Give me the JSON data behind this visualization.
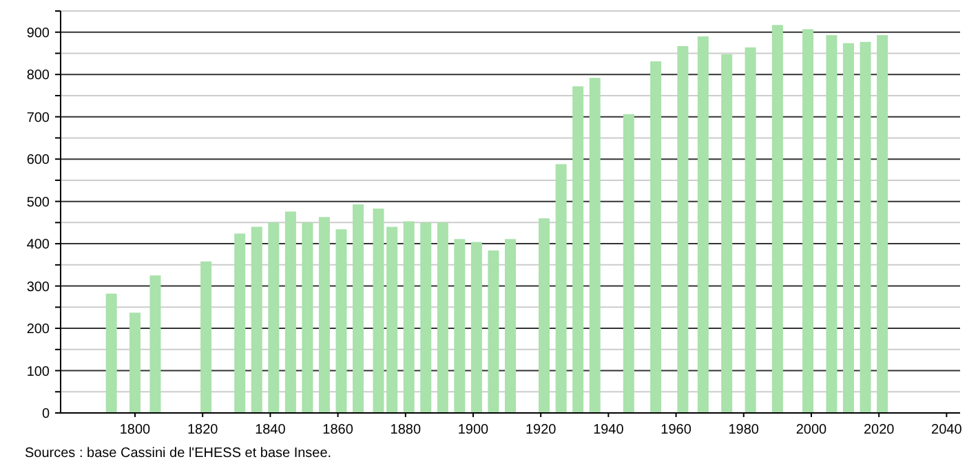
{
  "chart_data": {
    "type": "bar",
    "x": [
      1793,
      1800,
      1806,
      1821,
      1831,
      1836,
      1841,
      1846,
      1851,
      1856,
      1861,
      1866,
      1872,
      1876,
      1881,
      1886,
      1891,
      1896,
      1901,
      1906,
      1911,
      1921,
      1926,
      1931,
      1936,
      1946,
      1954,
      1962,
      1968,
      1975,
      1982,
      1990,
      1999,
      2006,
      2011,
      2016,
      2021
    ],
    "values": [
      282,
      237,
      325,
      358,
      424,
      440,
      450,
      476,
      450,
      463,
      434,
      493,
      483,
      440,
      453,
      450,
      450,
      411,
      404,
      384,
      411,
      460,
      588,
      772,
      792,
      706,
      831,
      867,
      890,
      848,
      864,
      917,
      907,
      893,
      874,
      877,
      893
    ],
    "color": "#a9e2ab",
    "xlim": [
      1778,
      2044
    ],
    "xticks": [
      1800,
      1820,
      1840,
      1860,
      1880,
      1900,
      1920,
      1940,
      1960,
      1980,
      2000,
      2020,
      2040
    ],
    "ylim": [
      0,
      950
    ],
    "yticks": [
      0,
      {
        "value": 50,
        "label": null
      },
      100,
      {
        "value": 150,
        "label": null
      },
      200,
      {
        "value": 250,
        "label": null
      },
      300,
      {
        "value": 350,
        "label": null
      },
      400,
      {
        "value": 450,
        "label": null
      },
      500,
      {
        "value": 550,
        "label": null
      },
      600,
      {
        "value": 650,
        "label": null
      },
      700,
      {
        "value": 750,
        "label": null
      },
      800,
      {
        "value": 850,
        "label": null
      },
      900,
      {
        "value": 950,
        "label": null
      }
    ],
    "grid": "y",
    "annotations": [
      "Sources : base Cassini de l'EHESS et base Insee."
    ]
  }
}
